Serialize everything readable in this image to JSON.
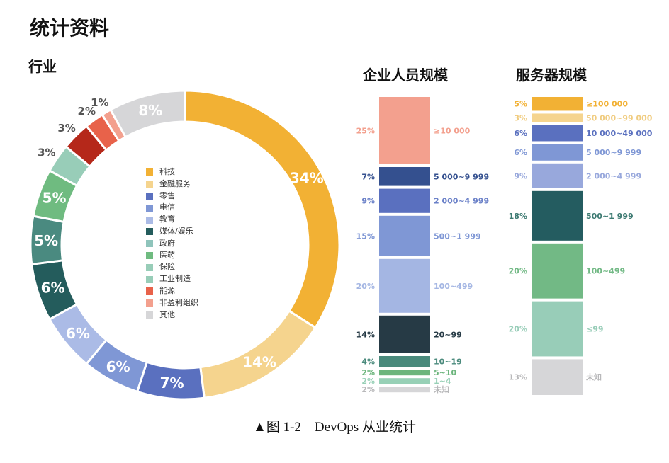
{
  "title": "统计资料",
  "caption": "▲图 1-2　DevOps 从业统计",
  "chart_data": [
    {
      "type": "pie",
      "title": "行业",
      "donut": true,
      "legend_placement": "center",
      "slices": [
        {
          "label": "科技",
          "value": 34,
          "color": "#f2b134"
        },
        {
          "label": "金融服务",
          "value": 14,
          "color": "#f5d48e"
        },
        {
          "label": "零售",
          "value": 7,
          "color": "#5a70bf"
        },
        {
          "label": "电信",
          "value": 6,
          "color": "#7f97d5"
        },
        {
          "label": "教育",
          "value": 6,
          "color": "#abbbe6"
        },
        {
          "label": "媒体/娱乐",
          "value": 6,
          "color": "#245c5c"
        },
        {
          "label": "政府",
          "value": 5,
          "color": "#4a8a80"
        },
        {
          "label": "医药",
          "value": 5,
          "color": "#6fbb80"
        },
        {
          "label": "保险",
          "value": 3,
          "color": "#98cdb8"
        },
        {
          "label": "工业制造",
          "value": 3,
          "color": "#b5281a"
        },
        {
          "label": "能源",
          "value": 2,
          "color": "#e8624a"
        },
        {
          "label": "非盈利组织",
          "value": 1,
          "color": "#f3a08e"
        },
        {
          "label": "其他",
          "value": 8,
          "color": "#d6d6d8"
        }
      ],
      "legend_colors": [
        "#f2b134",
        "#f5d48e",
        "#5a70bf",
        "#7f97d5",
        "#abbbe6",
        "#245c5c",
        "#8fc4bb",
        "#6fbb80",
        "#98cdb8",
        "#98cdb8",
        "#e8624a",
        "#f3a08e",
        "#d6d6d8"
      ]
    },
    {
      "type": "bar",
      "stacked": true,
      "title": "企业人员规模",
      "segments": [
        {
          "label": "≥10 000",
          "value": 25,
          "color": "#f3a08e",
          "text_color": "#f3a08e"
        },
        {
          "label": "5 000~9 999",
          "value": 7,
          "color": "#34508f",
          "text_color": "#34508f"
        },
        {
          "label": "2 000~4 999",
          "value": 9,
          "color": "#5a70bf",
          "text_color": "#6a80c8"
        },
        {
          "label": "500~1 999",
          "value": 15,
          "color": "#7f97d5",
          "text_color": "#7f97d5"
        },
        {
          "label": "100~499",
          "value": 20,
          "color": "#a4b6e3",
          "text_color": "#a4b6e3"
        },
        {
          "label": "20~99",
          "value": 14,
          "color": "#263a45",
          "text_color": "#263a45"
        },
        {
          "label": "10~19",
          "value": 4,
          "color": "#4a8a7c",
          "text_color": "#4a8a7c"
        },
        {
          "label": "5~10",
          "value": 2,
          "color": "#6cb57c",
          "text_color": "#6cb57c"
        },
        {
          "label": "1~4",
          "value": 2,
          "color": "#97d0b6",
          "text_color": "#97d0b6"
        },
        {
          "label": "未知",
          "value": 2,
          "color": "#d6d6d8",
          "text_color": "#b8b8ba"
        }
      ]
    },
    {
      "type": "bar",
      "stacked": true,
      "title": "服务器规模",
      "segments": [
        {
          "label": "≥100 000",
          "value": 5,
          "color": "#f2b134",
          "text_color": "#f2b134"
        },
        {
          "label": "50 000~99 000",
          "value": 3,
          "color": "#f5d48e",
          "text_color": "#f0cc80"
        },
        {
          "label": "10 000~49 000",
          "value": 6,
          "color": "#5a70bf",
          "text_color": "#5a70bf"
        },
        {
          "label": "5 000~9 999",
          "value": 6,
          "color": "#7f97d5",
          "text_color": "#7f97d5"
        },
        {
          "label": "2 000~4 999",
          "value": 9,
          "color": "#98a8dc",
          "text_color": "#98a8dc"
        },
        {
          "label": "500~1 999",
          "value": 18,
          "color": "#245c60",
          "text_color": "#3d7a72"
        },
        {
          "label": "100~499",
          "value": 20,
          "color": "#72b985",
          "text_color": "#72b985"
        },
        {
          "label": "≤99",
          "value": 20,
          "color": "#98cdb8",
          "text_color": "#98cdb8"
        },
        {
          "label": "未知",
          "value": 13,
          "color": "#d6d6d8",
          "text_color": "#b8b8ba"
        }
      ]
    }
  ]
}
